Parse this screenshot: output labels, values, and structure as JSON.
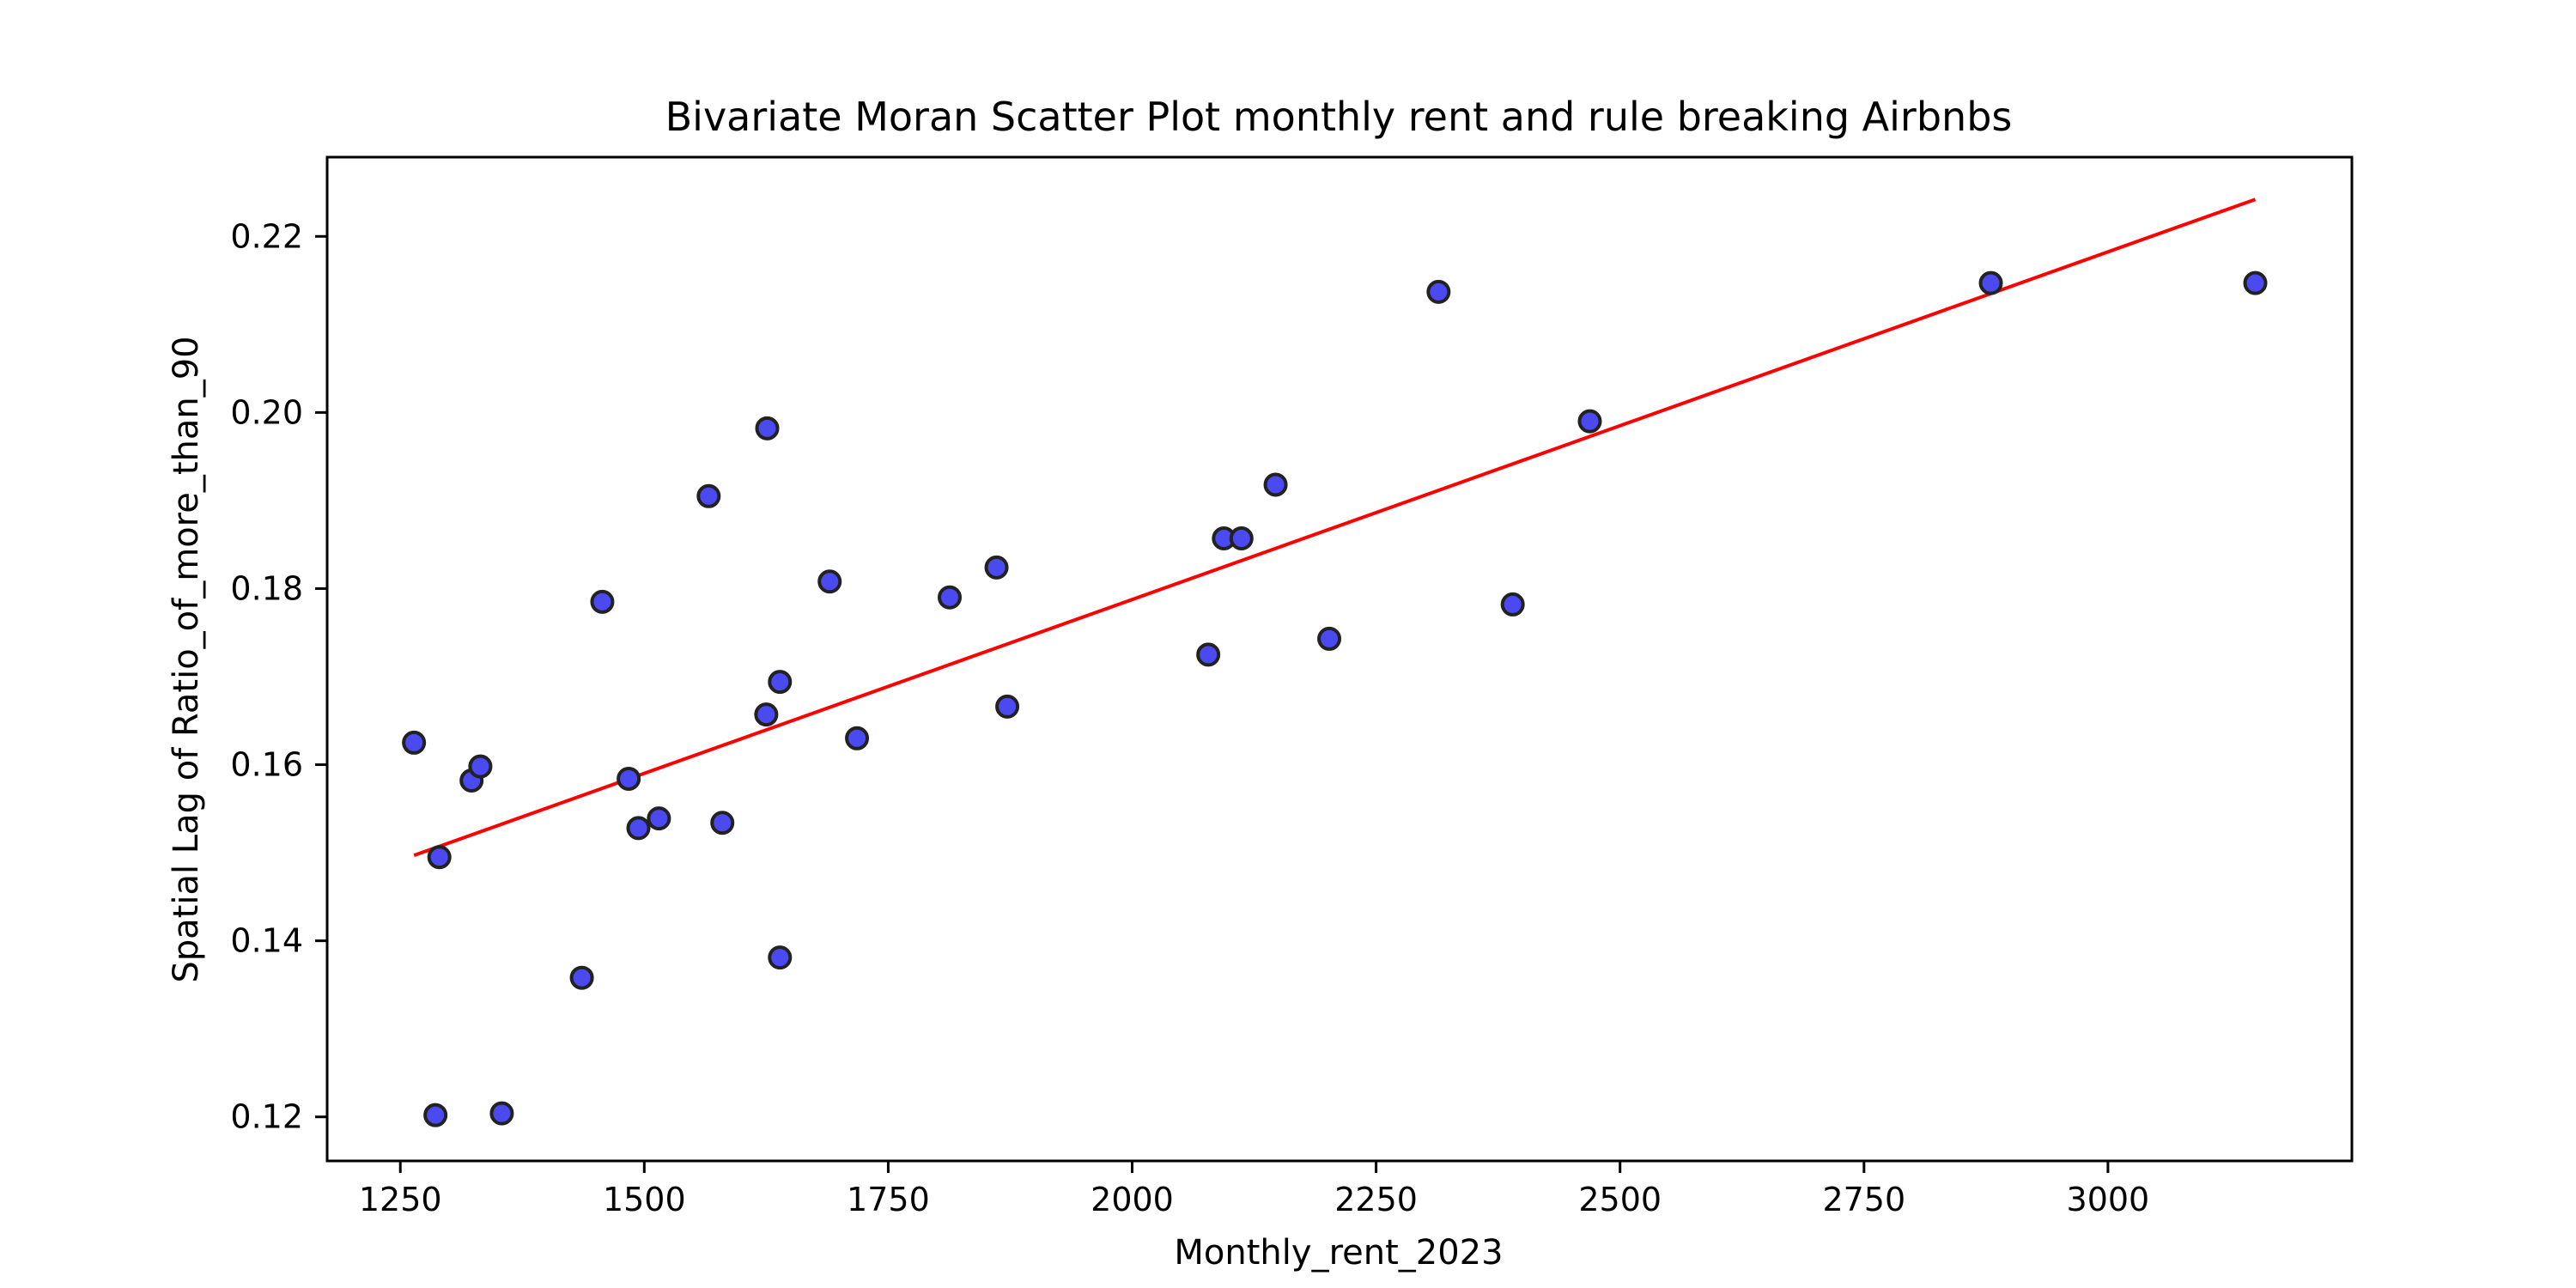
{
  "chart_data": {
    "type": "scatter",
    "title": "Bivariate Moran Scatter Plot monthly rent and rule breaking Airbnbs",
    "xlabel": "Monthly_rent_2023",
    "ylabel": "Spatial Lag of Ratio_of_more_than_90",
    "xlim": [
      1175,
      3250
    ],
    "ylim": [
      0.115,
      0.229
    ],
    "xticks": [
      1250,
      1500,
      1750,
      2000,
      2250,
      2500,
      2750,
      3000
    ],
    "xtick_labels": [
      "1250",
      "1500",
      "1750",
      "2000",
      "2250",
      "2500",
      "2750",
      "3000"
    ],
    "yticks": [
      0.12,
      0.14,
      0.16,
      0.18,
      0.2,
      0.22
    ],
    "ytick_labels": [
      "0.12",
      "0.14",
      "0.16",
      "0.18",
      "0.20",
      "0.22"
    ],
    "grid": false,
    "series": [
      {
        "kind": "points",
        "color": "#4a4af0",
        "edge_color": "#222222",
        "points": [
          {
            "x": 1264,
            "y": 0.1625
          },
          {
            "x": 1286,
            "y": 0.1202
          },
          {
            "x": 1290,
            "y": 0.1495
          },
          {
            "x": 1323,
            "y": 0.1582
          },
          {
            "x": 1332,
            "y": 0.1598
          },
          {
            "x": 1354,
            "y": 0.1204
          },
          {
            "x": 1436,
            "y": 0.1358
          },
          {
            "x": 1457,
            "y": 0.1785
          },
          {
            "x": 1484,
            "y": 0.1584
          },
          {
            "x": 1494,
            "y": 0.1528
          },
          {
            "x": 1515,
            "y": 0.1539
          },
          {
            "x": 1566,
            "y": 0.1905
          },
          {
            "x": 1580,
            "y": 0.1534
          },
          {
            "x": 1625,
            "y": 0.1657
          },
          {
            "x": 1626,
            "y": 0.1982
          },
          {
            "x": 1639,
            "y": 0.1694
          },
          {
            "x": 1639,
            "y": 0.1381
          },
          {
            "x": 1690,
            "y": 0.1808
          },
          {
            "x": 1718,
            "y": 0.163
          },
          {
            "x": 1813,
            "y": 0.179
          },
          {
            "x": 1861,
            "y": 0.1824
          },
          {
            "x": 1872,
            "y": 0.1666
          },
          {
            "x": 2078,
            "y": 0.1725
          },
          {
            "x": 2094,
            "y": 0.1857
          },
          {
            "x": 2112,
            "y": 0.1857
          },
          {
            "x": 2147,
            "y": 0.1918
          },
          {
            "x": 2202,
            "y": 0.1743
          },
          {
            "x": 2314,
            "y": 0.2137
          },
          {
            "x": 2390,
            "y": 0.1782
          },
          {
            "x": 2469,
            "y": 0.199
          },
          {
            "x": 2880,
            "y": 0.2147
          },
          {
            "x": 3151,
            "y": 0.2147
          }
        ]
      },
      {
        "kind": "fit-line",
        "color": "#ff0000",
        "points": [
          {
            "x": 1264,
            "y": 0.1497
          },
          {
            "x": 3151,
            "y": 0.2242
          }
        ]
      }
    ]
  }
}
